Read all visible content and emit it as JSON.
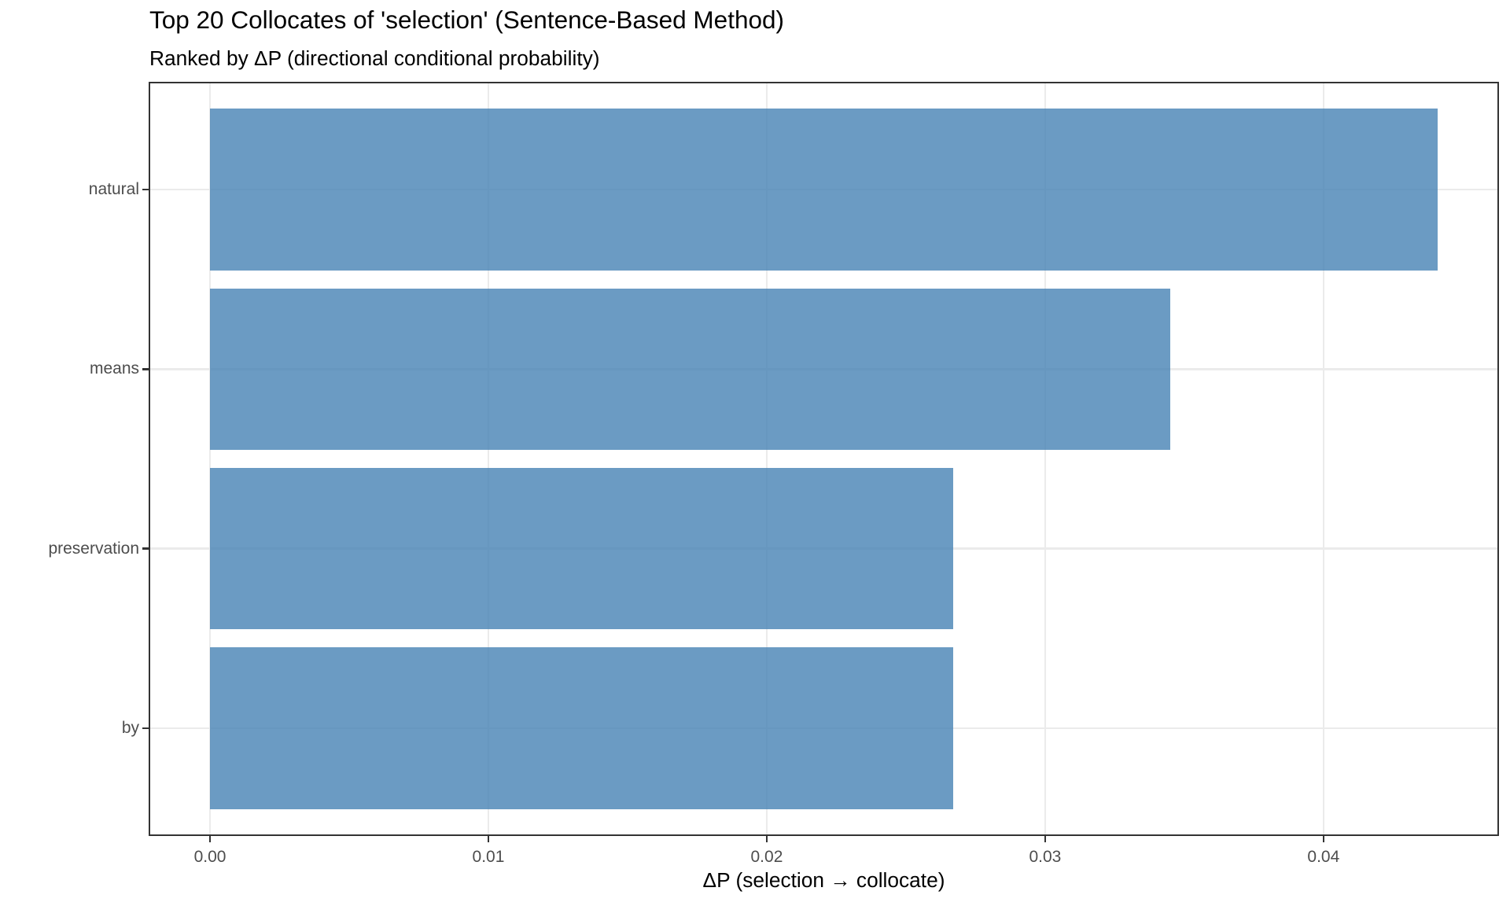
{
  "chart_data": {
    "type": "bar",
    "orientation": "horizontal",
    "title": "Top 20 Collocates of 'selection' (Sentence-Based Method)",
    "subtitle": "Ranked by ΔP (directional conditional probability)",
    "xlabel": "ΔP (selection → collocate)",
    "ylabel": "",
    "categories": [
      "natural",
      "means",
      "preservation",
      "by"
    ],
    "values": [
      0.0441,
      0.0345,
      0.0267,
      0.0267
    ],
    "x_ticks": [
      0,
      0.01,
      0.02,
      0.03,
      0.04
    ],
    "x_tick_labels": [
      "0.00",
      "0.01",
      "0.02",
      "0.03",
      "0.04"
    ],
    "xlim": [
      0,
      0.0485
    ],
    "grid": "major-only",
    "legend": "none",
    "bar_color": "rgba(70,130,180,0.8)",
    "bar_color_hex": "#6B9BC3",
    "grid_color": "#EBEBEB",
    "panel_border_color": "#333333",
    "tick_color": "#333333",
    "axis_text_color": "#4D4D4D",
    "title_color": "#000000"
  }
}
